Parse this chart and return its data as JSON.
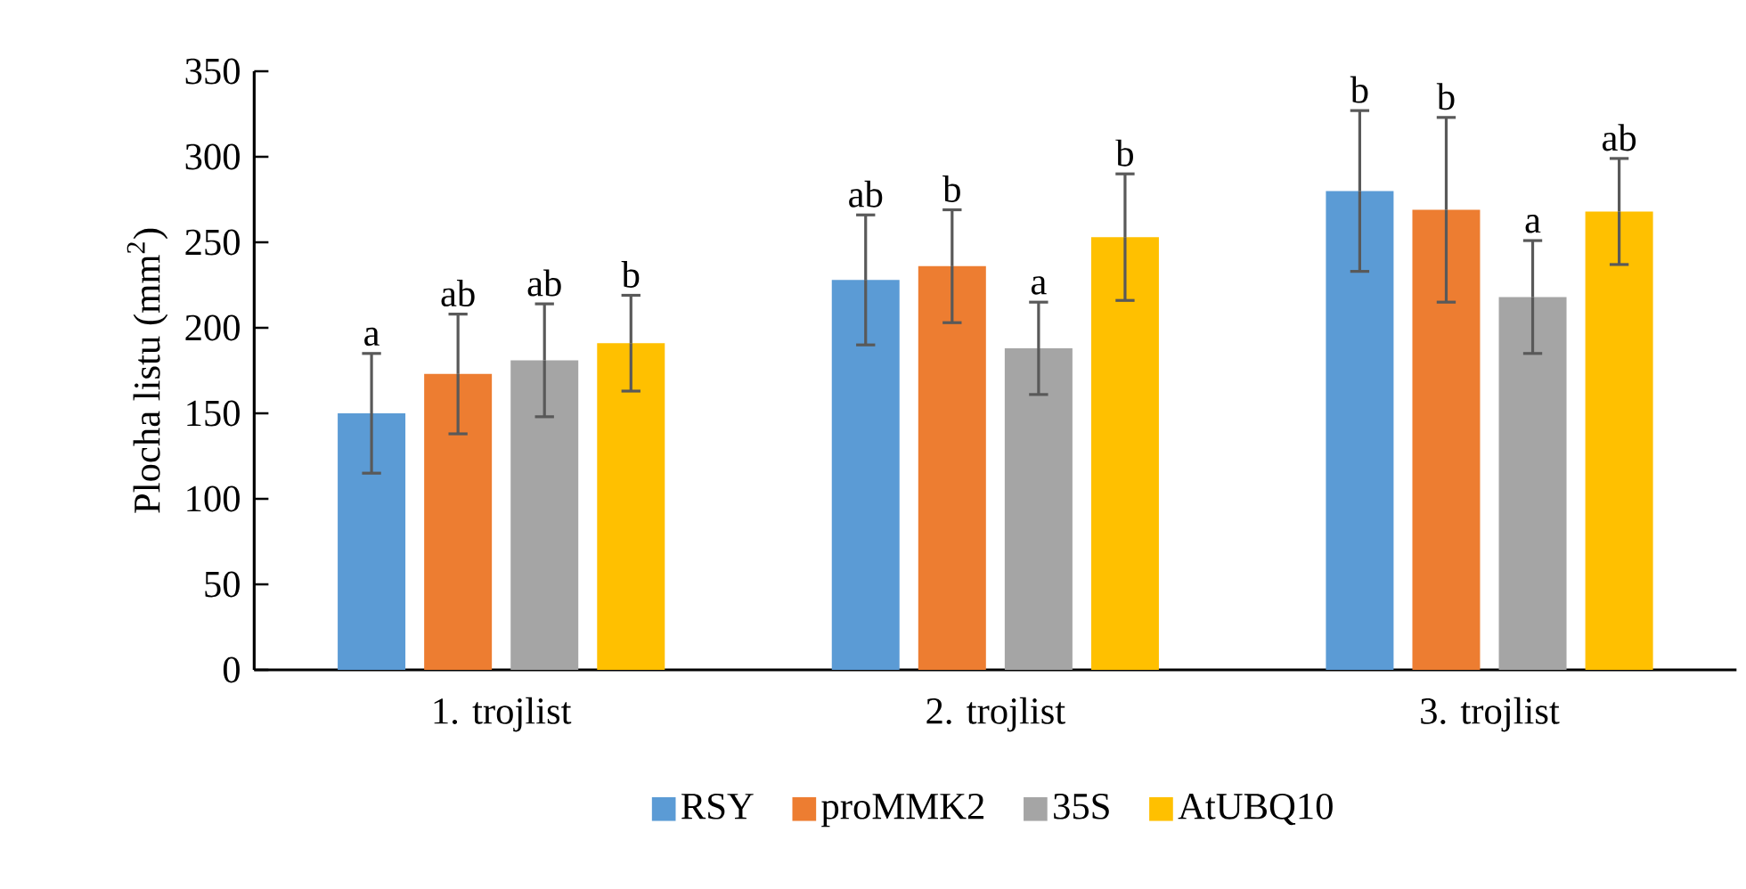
{
  "chart_data": {
    "type": "bar",
    "ylabel": "Plocha listu (mm$^{2}$)",
    "categories": [
      "1. trojlist",
      "2. trojlist",
      "3. trojlist"
    ],
    "series": [
      {
        "name": "RSY",
        "color": "#5b9bd5",
        "values": [
          150,
          228,
          280
        ],
        "errors": [
          35,
          38,
          47
        ]
      },
      {
        "name": "proMMK2",
        "color": "#ed7d31",
        "values": [
          173,
          236,
          269
        ],
        "errors": [
          35,
          33,
          54
        ]
      },
      {
        "name": "35S",
        "color": "#a5a5a5",
        "values": [
          181,
          188,
          218
        ],
        "errors": [
          33,
          27,
          33
        ]
      },
      {
        "name": "AtUBQ10",
        "color": "#ffc000",
        "values": [
          191,
          253,
          268
        ],
        "errors": [
          28,
          37,
          31
        ]
      }
    ],
    "ylim": [
      0,
      350
    ],
    "yticks": [
      0,
      50,
      100,
      150,
      200,
      250,
      300,
      350
    ],
    "legend": "bottom",
    "annotations": [
      "a",
      "ab",
      "ab",
      "b",
      "ab",
      "b",
      "a",
      "b",
      "b",
      "b",
      "a",
      "ab"
    ]
  }
}
